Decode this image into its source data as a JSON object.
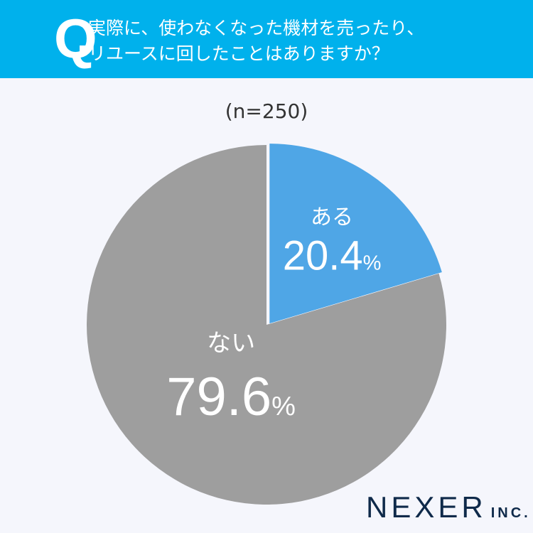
{
  "header": {
    "q_mark": "Q",
    "question": "実際に、使わなくなった機材を売ったり、\nリユースに回したことはありますか？"
  },
  "sample": "(n=250)",
  "chart_data": {
    "type": "pie",
    "categories": [
      "ある",
      "ない"
    ],
    "values": [
      20.4,
      79.6
    ],
    "labels": [
      "20.4",
      "79.6"
    ],
    "unit": "%",
    "colors": [
      "#4fa6e6",
      "#9e9e9e"
    ],
    "start": "12 o'clock, clockwise"
  },
  "logo": {
    "name": "NEXER",
    "suffix": "INC."
  }
}
